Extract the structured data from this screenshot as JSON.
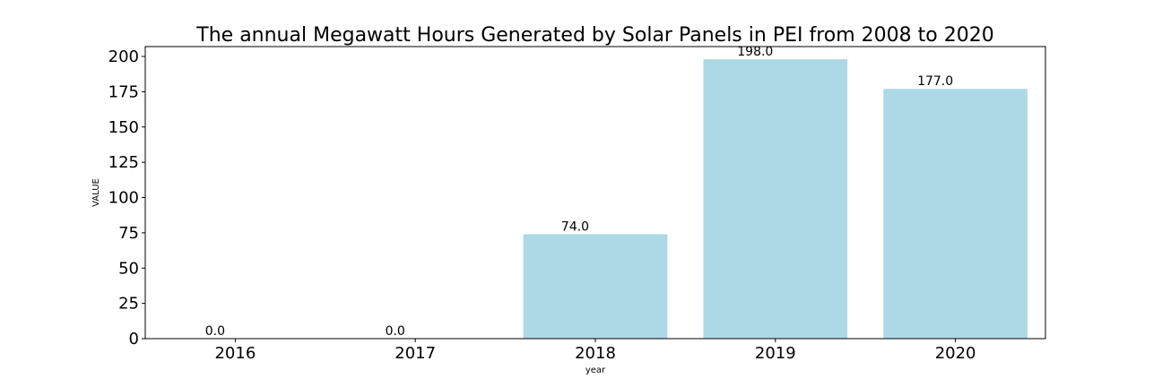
{
  "chart_data": {
    "type": "bar",
    "title": "The annual Megawatt Hours Generated by Solar Panels in PEI from 2008 to 2020",
    "xlabel": "year",
    "ylabel": "VALUE",
    "categories": [
      "2016",
      "2017",
      "2018",
      "2019",
      "2020"
    ],
    "values": [
      0.0,
      0.0,
      74.0,
      198.0,
      177.0
    ],
    "data_labels": [
      "0.0",
      "0.0",
      "74.0",
      "198.0",
      "177.0"
    ],
    "ylim": [
      0,
      207
    ],
    "yticks": [
      0,
      25,
      50,
      75,
      100,
      125,
      150,
      175,
      200
    ],
    "grid": false,
    "bar_color": "#add8e6"
  }
}
